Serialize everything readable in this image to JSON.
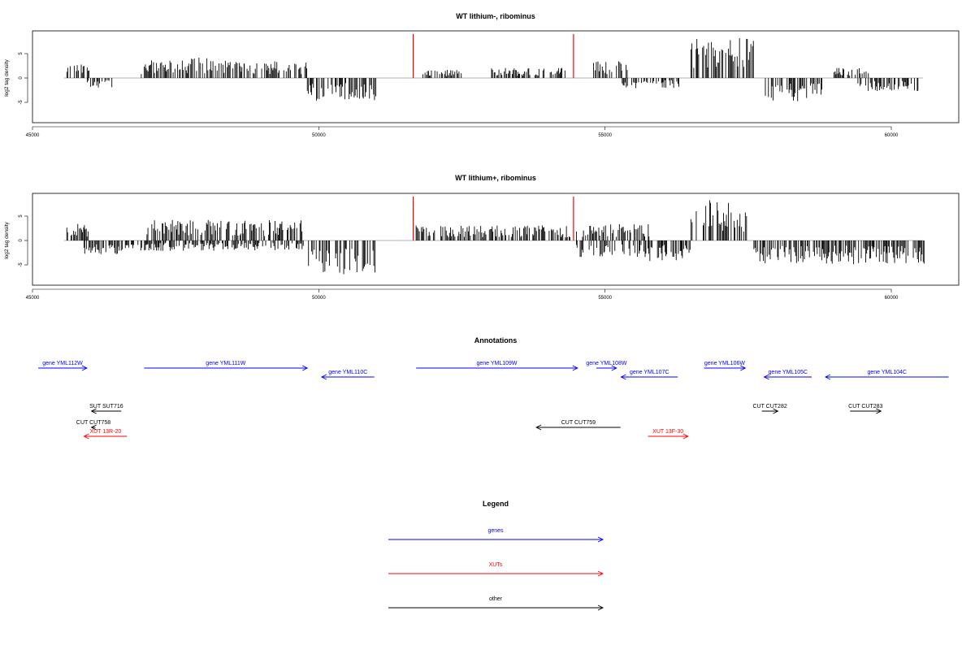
{
  "chart_data": [
    {
      "type": "bar",
      "title": "WT lithium-, ribominus",
      "ylabel": "log2 tag density",
      "xlabel": "",
      "xlim": [
        45000,
        61000
      ],
      "ylim": [
        -9,
        9
      ],
      "x_ticks": [
        45000,
        50000,
        55000,
        60000
      ],
      "y_ticks": [
        -5,
        0,
        5
      ],
      "marker_color": "#ff0000",
      "bar_color": "#000000",
      "markers_x": [
        51650,
        54450
      ],
      "series": [
        {
          "strand": "+",
          "regions": [
            {
              "x": [
                45600,
                46000
              ],
              "avg": 2.0
            },
            {
              "x": [
                46900,
                47700
              ],
              "avg": 2.6
            },
            {
              "x": [
                47700,
                48700
              ],
              "avg": 3.0
            },
            {
              "x": [
                48700,
                49800
              ],
              "avg": 2.5
            },
            {
              "x": [
                51800,
                52500
              ],
              "avg": 1.2
            },
            {
              "x": [
                53000,
                54300
              ],
              "avg": 1.5
            },
            {
              "x": [
                54800,
                55400
              ],
              "avg": 2.5
            },
            {
              "x": [
                56500,
                57600
              ],
              "avg": 6.0
            },
            {
              "x": [
                59000,
                59600
              ],
              "avg": 1.5
            }
          ]
        },
        {
          "strand": "-",
          "regions": [
            {
              "x": [
                45900,
                46400
              ],
              "avg": -1.5
            },
            {
              "x": [
                49800,
                51000
              ],
              "avg": -3.5
            },
            {
              "x": [
                55300,
                56300
              ],
              "avg": -1.5
            },
            {
              "x": [
                57800,
                58800
              ],
              "avg": -3.5
            },
            {
              "x": [
                59400,
                60500
              ],
              "avg": -2.0
            }
          ]
        }
      ]
    },
    {
      "type": "bar",
      "title": "WT lithium+, ribominus",
      "ylabel": "log2 tag density",
      "xlabel": "",
      "xlim": [
        45000,
        61000
      ],
      "ylim": [
        -9,
        9
      ],
      "x_ticks": [
        45000,
        50000,
        55000,
        60000
      ],
      "y_ticks": [
        -5,
        0,
        5
      ],
      "marker_color": "#ff0000",
      "bar_color": "#000000",
      "markers_x": [
        51650,
        54450
      ],
      "series": [
        {
          "strand": "+",
          "regions": [
            {
              "x": [
                45600,
                46000
              ],
              "avg": 2.5
            },
            {
              "x": [
                46900,
                49800
              ],
              "avg": 3.0
            },
            {
              "x": [
                51700,
                54400
              ],
              "avg": 2.2
            },
            {
              "x": [
                54500,
                55800
              ],
              "avg": 2.5
            },
            {
              "x": [
                56500,
                57500
              ],
              "avg": 6.0
            }
          ]
        },
        {
          "strand": "-",
          "regions": [
            {
              "x": [
                45900,
                46600
              ],
              "avg": -2.0
            },
            {
              "x": [
                46600,
                49800
              ],
              "avg": -1.5
            },
            {
              "x": [
                49800,
                51000
              ],
              "avg": -5.0
            },
            {
              "x": [
                54500,
                55500
              ],
              "avg": -2.5
            },
            {
              "x": [
                55500,
                56500
              ],
              "avg": -3.0
            },
            {
              "x": [
                57600,
                60600
              ],
              "avg": -3.5
            }
          ]
        }
      ]
    }
  ],
  "annotations": {
    "title": "Annotations",
    "features": [
      {
        "label": "gene YML112W",
        "x": [
          45100,
          45950
        ],
        "row": 0,
        "strand": "+",
        "kind": "gene"
      },
      {
        "label": "gene YML111W",
        "x": [
          46950,
          49800
        ],
        "row": 0,
        "strand": "+",
        "kind": "gene"
      },
      {
        "label": "gene YML110C",
        "x": [
          50050,
          50970
        ],
        "row": 1,
        "strand": "-",
        "kind": "gene"
      },
      {
        "label": "gene YML109W",
        "x": [
          51700,
          54520
        ],
        "row": 0,
        "strand": "+",
        "kind": "gene"
      },
      {
        "label": "gene YML108W",
        "x": [
          54850,
          55200
        ],
        "row": 0,
        "strand": "+",
        "kind": "gene"
      },
      {
        "label": "gene YML107C",
        "x": [
          55280,
          56270
        ],
        "row": 1,
        "strand": "-",
        "kind": "gene"
      },
      {
        "label": "gene YML106W",
        "x": [
          56730,
          57450
        ],
        "row": 0,
        "strand": "+",
        "kind": "gene"
      },
      {
        "label": "gene YML105C",
        "x": [
          57780,
          58610
        ],
        "row": 1,
        "strand": "-",
        "kind": "gene"
      },
      {
        "label": "gene YML104C",
        "x": [
          58850,
          61000
        ],
        "row": 1,
        "strand": "-",
        "kind": "gene"
      },
      {
        "label": "SUT SUT716",
        "x": [
          46030,
          46550
        ],
        "row": 3,
        "strand": "-",
        "kind": "other"
      },
      {
        "label": "CUT CUT758",
        "x": [
          46030,
          46100
        ],
        "row": 4,
        "strand": "-",
        "kind": "other"
      },
      {
        "label": "XUT 13R-20",
        "x": [
          45900,
          46650
        ],
        "row": 5,
        "strand": "-",
        "kind": "xut"
      },
      {
        "label": "CUT CUT759",
        "x": [
          53800,
          55270
        ],
        "row": 4,
        "strand": "-",
        "kind": "other"
      },
      {
        "label": "XUT 13F-30",
        "x": [
          55750,
          56450
        ],
        "row": 5,
        "strand": "+",
        "kind": "xut"
      },
      {
        "label": "CUT CUT282",
        "x": [
          57740,
          58020
        ],
        "row": 3,
        "strand": "+",
        "kind": "other"
      },
      {
        "label": "CUT CUT283",
        "x": [
          59280,
          59820
        ],
        "row": 3,
        "strand": "+",
        "kind": "other"
      }
    ]
  },
  "legend": {
    "title": "Legend",
    "items": [
      {
        "label": "genes",
        "color": "#0000ff"
      },
      {
        "label": "XUTs",
        "color": "#ff0000"
      },
      {
        "label": "other",
        "color": "#000000"
      }
    ]
  },
  "colors": {
    "gene": "#0000ff",
    "xut": "#ff0000",
    "other": "#000000",
    "zero_line": "#999999"
  }
}
